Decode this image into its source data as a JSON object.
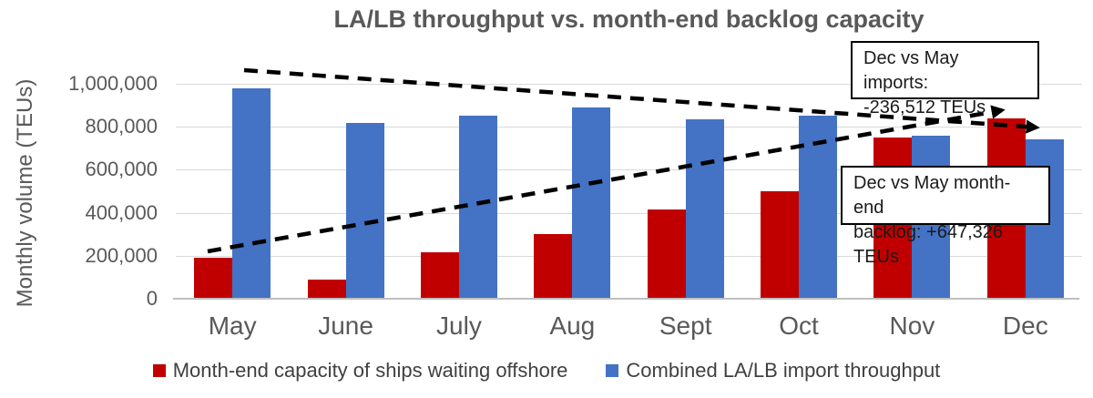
{
  "chart_data": {
    "type": "bar",
    "title": "LA/LB throughput vs. month-end backlog capacity",
    "ylabel": "Monthly volume (TEUs)",
    "xlabel": "",
    "categories": [
      "May",
      "June",
      "July",
      "Aug",
      "Sept",
      "Oct",
      "Nov",
      "Dec"
    ],
    "series": [
      {
        "name": "Month-end capacity of ships waiting offshore",
        "color": "#c00000",
        "values": [
          190000,
          90000,
          215000,
          300000,
          415000,
          500000,
          750000,
          837326
        ]
      },
      {
        "name": "Combined LA/LB import throughput",
        "color": "#4472c4",
        "values": [
          980000,
          820000,
          850000,
          890000,
          835000,
          850000,
          760000,
          743488
        ]
      }
    ],
    "ylim": [
      0,
      1000000
    ],
    "yticks": [
      0,
      200000,
      400000,
      600000,
      800000,
      1000000
    ],
    "ytick_labels": [
      "0",
      "200,000",
      "400,000",
      "600,000",
      "800,000",
      "1,000,000"
    ],
    "grid": true,
    "legend_position": "bottom",
    "trendlines": [
      {
        "name": "imports-trend",
        "from": [
          268,
          77
        ],
        "to": [
          1138,
          140
        ]
      },
      {
        "name": "backlog-trend",
        "from": [
          228,
          276
        ],
        "to": [
          1100,
          121
        ]
      }
    ],
    "annotations": [
      {
        "lines": [
          "Dec vs May imports:",
          "-236,512 TEUs"
        ]
      },
      {
        "lines": [
          "Dec vs May month-end",
          "backlog: +647,326 TEUs"
        ]
      }
    ]
  }
}
